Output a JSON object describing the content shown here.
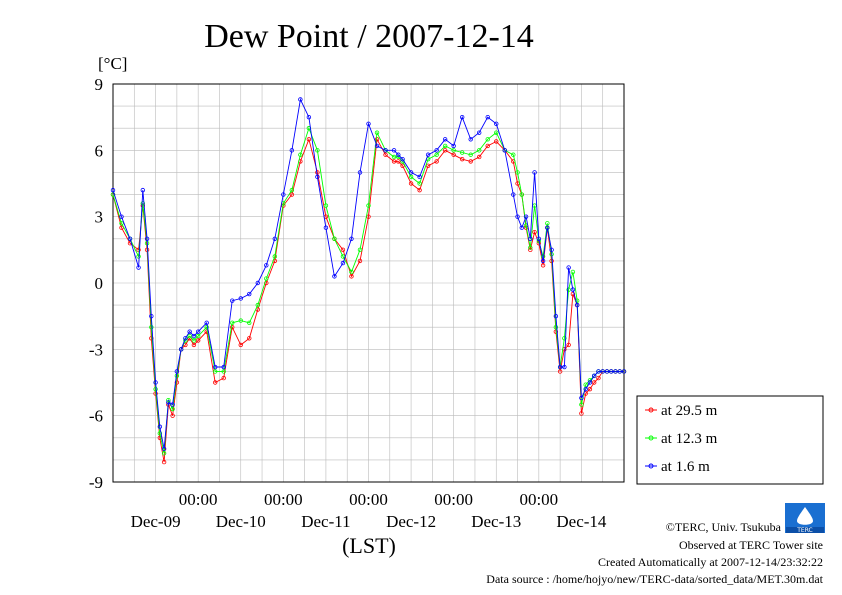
{
  "chart_data": {
    "type": "line",
    "title": "Dew Point / 2007-12-14",
    "ylabel": "[°C]",
    "xlabel": "(LST)",
    "ylim": [
      -9,
      9
    ],
    "yticks": [
      "9",
      "6",
      "3",
      "0",
      "-3",
      "-6",
      "-9"
    ],
    "xlim": [
      0,
      6
    ],
    "xticks_time": [
      "00:00",
      "00:00",
      "00:00",
      "00:00",
      "00:00"
    ],
    "xticks_date": [
      "Dec-09",
      "Dec-10",
      "Dec-11",
      "Dec-12",
      "Dec-13",
      "Dec-14"
    ],
    "grid": true,
    "legend_position": "right",
    "series": [
      {
        "name": "at 29.5 m",
        "color": "#ff0000",
        "x": [
          0,
          0.1,
          0.2,
          0.3,
          0.35,
          0.4,
          0.45,
          0.5,
          0.55,
          0.6,
          0.65,
          0.7,
          0.75,
          0.8,
          0.85,
          0.9,
          0.95,
          1.0,
          1.1,
          1.2,
          1.3,
          1.4,
          1.5,
          1.6,
          1.7,
          1.8,
          1.9,
          2.0,
          2.1,
          2.2,
          2.3,
          2.4,
          2.5,
          2.6,
          2.7,
          2.8,
          2.9,
          3.0,
          3.1,
          3.2,
          3.3,
          3.35,
          3.4,
          3.5,
          3.6,
          3.7,
          3.8,
          3.9,
          4.0,
          4.1,
          4.2,
          4.3,
          4.4,
          4.5,
          4.6,
          4.7,
          4.75,
          4.8,
          4.85,
          4.9,
          4.95,
          5.0,
          5.05,
          5.1,
          5.15,
          5.2,
          5.25,
          5.3,
          5.35,
          5.4,
          5.45,
          5.5,
          5.55,
          5.6,
          5.65,
          5.7,
          5.75,
          5.8,
          5.85,
          5.9,
          5.95,
          6.0
        ],
        "y": [
          4.0,
          2.5,
          1.8,
          1.5,
          3.5,
          1.5,
          -2.5,
          -5.0,
          -7.0,
          -8.1,
          -5.5,
          -6.0,
          -4.5,
          -3.0,
          -2.8,
          -2.5,
          -2.8,
          -2.6,
          -2.2,
          -4.5,
          -4.3,
          -2.0,
          -2.8,
          -2.5,
          -1.2,
          0.0,
          1.0,
          3.5,
          4.0,
          5.5,
          6.5,
          5.0,
          3.0,
          2.0,
          1.5,
          0.3,
          1.0,
          3.0,
          6.5,
          5.8,
          5.5,
          5.5,
          5.3,
          4.5,
          4.2,
          5.3,
          5.5,
          6.0,
          5.8,
          5.6,
          5.5,
          5.7,
          6.2,
          6.4,
          6.0,
          5.5,
          4.5,
          4.0,
          2.5,
          1.5,
          2.3,
          1.8,
          0.8,
          2.5,
          1.0,
          -2.2,
          -4.0,
          -3.0,
          -2.8,
          -0.5,
          -1.0,
          -5.9,
          -5.0,
          -4.8,
          -4.5,
          -4.3,
          -4.0,
          -4.0,
          -4.0,
          -4.0,
          -4.0,
          -4.0
        ]
      },
      {
        "name": "at 12.3 m",
        "color": "#00ff00",
        "x": [
          0,
          0.1,
          0.2,
          0.3,
          0.35,
          0.4,
          0.45,
          0.5,
          0.55,
          0.6,
          0.65,
          0.7,
          0.75,
          0.8,
          0.85,
          0.9,
          0.95,
          1.0,
          1.1,
          1.2,
          1.3,
          1.4,
          1.5,
          1.6,
          1.7,
          1.8,
          1.9,
          2.0,
          2.1,
          2.2,
          2.3,
          2.4,
          2.5,
          2.6,
          2.7,
          2.8,
          2.9,
          3.0,
          3.1,
          3.2,
          3.3,
          3.35,
          3.4,
          3.5,
          3.6,
          3.7,
          3.8,
          3.9,
          4.0,
          4.1,
          4.2,
          4.3,
          4.4,
          4.5,
          4.6,
          4.7,
          4.75,
          4.8,
          4.85,
          4.9,
          4.95,
          5.0,
          5.05,
          5.1,
          5.15,
          5.2,
          5.25,
          5.3,
          5.35,
          5.4,
          5.45,
          5.5,
          5.55,
          5.6,
          5.65,
          5.7,
          5.75,
          5.8,
          5.85,
          5.9,
          5.95,
          6.0
        ],
        "y": [
          4.0,
          2.7,
          2.0,
          1.2,
          3.6,
          1.8,
          -2.0,
          -4.8,
          -6.8,
          -7.7,
          -5.3,
          -5.7,
          -4.2,
          -3.0,
          -2.6,
          -2.4,
          -2.6,
          -2.4,
          -2.0,
          -4.0,
          -4.0,
          -1.8,
          -1.7,
          -1.8,
          -1.0,
          0.2,
          1.2,
          3.6,
          4.2,
          5.8,
          7.0,
          6.0,
          3.5,
          2.0,
          1.2,
          0.5,
          1.5,
          3.5,
          6.8,
          6.0,
          5.7,
          5.7,
          5.5,
          4.8,
          4.5,
          5.6,
          5.8,
          6.2,
          6.0,
          5.9,
          5.8,
          6.0,
          6.5,
          6.8,
          6.0,
          5.8,
          5.0,
          4.0,
          2.6,
          1.6,
          3.5,
          1.9,
          1.2,
          2.7,
          1.3,
          -2.0,
          -3.8,
          -2.5,
          -0.3,
          0.5,
          -0.8,
          -5.5,
          -4.6,
          -4.4,
          -4.2,
          -4.0,
          -4.0,
          -4.0,
          -4.0,
          -4.0,
          -4.0,
          -4.0
        ]
      },
      {
        "name": "at 1.6 m",
        "color": "#0000ff",
        "x": [
          0,
          0.1,
          0.2,
          0.3,
          0.35,
          0.4,
          0.45,
          0.5,
          0.55,
          0.6,
          0.65,
          0.7,
          0.75,
          0.8,
          0.85,
          0.9,
          0.95,
          1.0,
          1.1,
          1.2,
          1.3,
          1.4,
          1.5,
          1.6,
          1.7,
          1.8,
          1.9,
          2.0,
          2.1,
          2.2,
          2.3,
          2.4,
          2.5,
          2.6,
          2.7,
          2.8,
          2.9,
          3.0,
          3.1,
          3.2,
          3.3,
          3.35,
          3.4,
          3.5,
          3.6,
          3.7,
          3.8,
          3.9,
          4.0,
          4.1,
          4.2,
          4.3,
          4.4,
          4.5,
          4.6,
          4.7,
          4.75,
          4.8,
          4.85,
          4.9,
          4.95,
          5.0,
          5.05,
          5.1,
          5.15,
          5.2,
          5.25,
          5.3,
          5.35,
          5.4,
          5.45,
          5.5,
          5.55,
          5.6,
          5.65,
          5.7,
          5.75,
          5.8,
          5.85,
          5.9,
          5.95,
          6.0
        ],
        "y": [
          4.2,
          3.0,
          2.0,
          0.7,
          4.2,
          2.0,
          -1.5,
          -4.5,
          -6.5,
          -7.5,
          -5.4,
          -5.5,
          -4.0,
          -3.0,
          -2.5,
          -2.2,
          -2.4,
          -2.2,
          -1.8,
          -3.8,
          -3.8,
          -0.8,
          -0.7,
          -0.5,
          0.0,
          0.8,
          2.0,
          4.0,
          6.0,
          8.3,
          7.5,
          4.8,
          2.5,
          0.3,
          0.9,
          2.0,
          5.0,
          7.2,
          6.2,
          6.0,
          6.0,
          5.8,
          5.6,
          5.0,
          4.8,
          5.8,
          6.0,
          6.5,
          6.2,
          7.5,
          6.5,
          6.8,
          7.5,
          7.2,
          6.0,
          4.0,
          3.0,
          2.5,
          3.0,
          2.0,
          5.0,
          2.0,
          1.0,
          2.5,
          1.5,
          -1.5,
          -3.8,
          -3.8,
          0.7,
          -0.3,
          -1.0,
          -5.2,
          -4.8,
          -4.5,
          -4.2,
          -4.0,
          -4.0,
          -4.0,
          -4.0,
          -4.0,
          -4.0,
          -4.0
        ]
      }
    ]
  },
  "footer": {
    "copyright": "©TERC, Univ. Tsukuba",
    "site": "Observed at TERC Tower site",
    "created": "Created Automatically at 2007-12-14/23:32:22",
    "source": "Data source : /home/hojyo/new/TERC-data/sorted_data/MET.30m.dat",
    "logo_text": "TERC"
  }
}
